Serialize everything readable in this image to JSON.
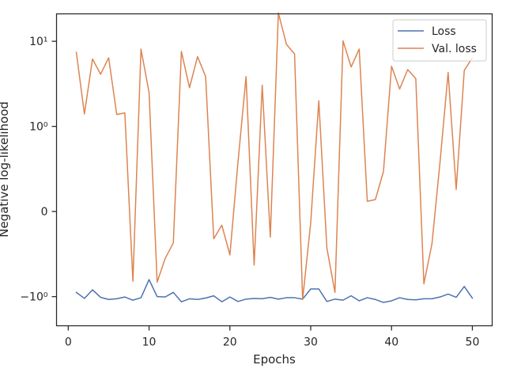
{
  "chart_data": {
    "type": "line",
    "xlabel": "Epochs",
    "ylabel": "Negative log-likelihood",
    "y_scale": "symlog",
    "x_ticks": [
      0,
      10,
      20,
      30,
      40,
      50
    ],
    "x_tick_labels": [
      "0",
      "10",
      "20",
      "30",
      "40",
      "50"
    ],
    "y_ticks": [
      -1,
      0,
      1,
      10
    ],
    "y_tick_labels": [
      "−10⁰",
      "0",
      "10⁰",
      "10¹"
    ],
    "xlim": [
      -1.45,
      52.45
    ],
    "ylim": [
      -2.2,
      21
    ],
    "legend_position": "top-right",
    "grid": false,
    "x": [
      1,
      2,
      3,
      4,
      5,
      6,
      7,
      8,
      9,
      10,
      11,
      12,
      13,
      14,
      15,
      16,
      17,
      18,
      19,
      20,
      21,
      22,
      23,
      24,
      25,
      26,
      27,
      28,
      29,
      30,
      31,
      32,
      33,
      34,
      35,
      36,
      37,
      38,
      39,
      40,
      41,
      42,
      43,
      44,
      45,
      46,
      47,
      48,
      49,
      50
    ],
    "series": [
      {
        "name": "Loss",
        "color": "#4c72b0",
        "values": [
          -0.95,
          -1.05,
          -0.92,
          -1.02,
          -1.08,
          -1.06,
          -1.01,
          -1.1,
          -1.03,
          -0.8,
          -1.0,
          -1.01,
          -0.95,
          -1.15,
          -1.06,
          -1.08,
          -1.04,
          -0.99,
          -1.15,
          -1.01,
          -1.14,
          -1.07,
          -1.05,
          -1.06,
          -1.02,
          -1.07,
          -1.03,
          -1.03,
          -1.07,
          -0.91,
          -0.91,
          -1.14,
          -1.07,
          -1.1,
          -0.99,
          -1.12,
          -1.03,
          -1.08,
          -1.17,
          -1.12,
          -1.03,
          -1.08,
          -1.09,
          -1.06,
          -1.06,
          -1.01,
          -0.97,
          -1.02,
          -0.88,
          -1.04
        ]
      },
      {
        "name": "Val. loss",
        "color": "#dd8452",
        "values": [
          7.4,
          1.4,
          6.2,
          4.1,
          6.4,
          1.38,
          1.44,
          -0.82,
          8.1,
          2.5,
          -0.83,
          -0.55,
          -0.37,
          7.6,
          2.85,
          6.6,
          3.85,
          -0.32,
          -0.16,
          -0.51,
          0.58,
          3.85,
          -0.63,
          3.05,
          -0.3,
          21.5,
          9.2,
          7.1,
          -1.08,
          -0.13,
          2.0,
          -0.43,
          -0.95,
          10.1,
          5.0,
          8.1,
          0.12,
          0.14,
          0.47,
          5.1,
          2.75,
          4.65,
          3.65,
          -0.85,
          -0.38,
          0.58,
          4.3,
          0.26,
          4.55,
          6.4
        ]
      }
    ]
  }
}
